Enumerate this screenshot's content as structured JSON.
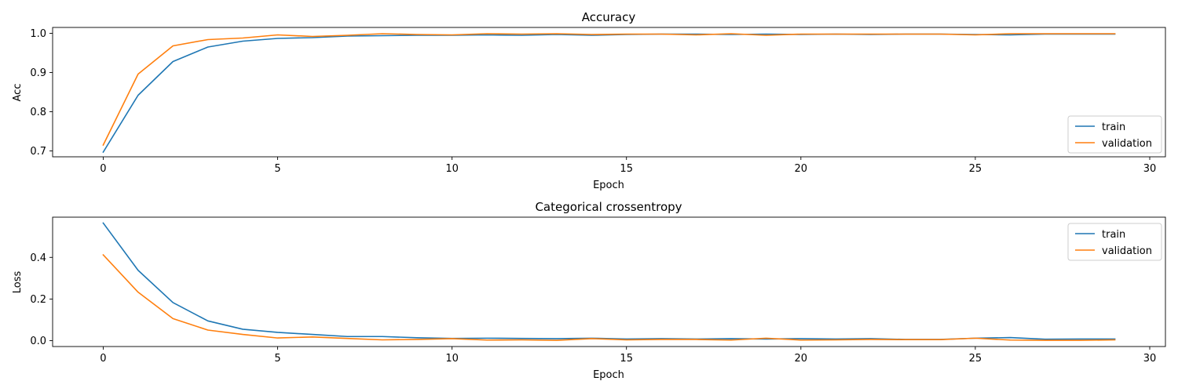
{
  "chart_data": [
    {
      "type": "line",
      "title": "Accuracy",
      "xlabel": "Epoch",
      "ylabel": "Acc",
      "xlim": [
        -1.45,
        30.45
      ],
      "ylim": [
        0.685,
        1.015
      ],
      "xticks": [
        0,
        5,
        10,
        15,
        20,
        25,
        30
      ],
      "xtick_labels": [
        "0",
        "5",
        "10",
        "15",
        "20",
        "25",
        "30"
      ],
      "yticks": [
        0.7,
        0.8,
        0.9,
        1.0
      ],
      "ytick_labels": [
        "0.7",
        "0.8",
        "0.9",
        "1.0"
      ],
      "grid": false,
      "legend_position": "lower-right",
      "x": [
        0,
        1,
        2,
        3,
        4,
        5,
        6,
        7,
        8,
        9,
        10,
        11,
        12,
        13,
        14,
        15,
        16,
        17,
        18,
        19,
        20,
        21,
        22,
        23,
        24,
        25,
        26,
        27,
        28,
        29
      ],
      "series": [
        {
          "name": "train",
          "color": "#1f77b4",
          "values": [
            0.697,
            0.842,
            0.928,
            0.965,
            0.98,
            0.987,
            0.989,
            0.993,
            0.994,
            0.995,
            0.995,
            0.996,
            0.995,
            0.997,
            0.995,
            0.997,
            0.998,
            0.998,
            0.997,
            0.998,
            0.997,
            0.998,
            0.997,
            0.998,
            0.998,
            0.997,
            0.996,
            0.998,
            0.998,
            0.998
          ]
        },
        {
          "name": "validation",
          "color": "#ff7f0e",
          "values": [
            0.715,
            0.896,
            0.968,
            0.984,
            0.988,
            0.996,
            0.992,
            0.995,
            0.999,
            0.997,
            0.996,
            0.999,
            0.998,
            0.999,
            0.997,
            0.998,
            0.998,
            0.996,
            0.999,
            0.995,
            0.998,
            0.998,
            0.998,
            0.998,
            0.998,
            0.996,
            0.999,
            0.999,
            0.999,
            0.999
          ]
        }
      ]
    },
    {
      "type": "line",
      "title": "Categorical crossentropy",
      "xlabel": "Epoch",
      "ylabel": "Loss",
      "xlim": [
        -1.45,
        30.45
      ],
      "ylim": [
        -0.028,
        0.593
      ],
      "xticks": [
        0,
        5,
        10,
        15,
        20,
        25,
        30
      ],
      "xtick_labels": [
        "0",
        "5",
        "10",
        "15",
        "20",
        "25",
        "30"
      ],
      "yticks": [
        0.0,
        0.2,
        0.4
      ],
      "ytick_labels": [
        "0.0",
        "0.2",
        "0.4"
      ],
      "grid": false,
      "legend_position": "upper-right",
      "x": [
        0,
        1,
        2,
        3,
        4,
        5,
        6,
        7,
        8,
        9,
        10,
        11,
        12,
        13,
        14,
        15,
        16,
        17,
        18,
        19,
        20,
        21,
        22,
        23,
        24,
        25,
        26,
        27,
        28,
        29
      ],
      "series": [
        {
          "name": "train",
          "color": "#1f77b4",
          "values": [
            0.565,
            0.338,
            0.183,
            0.095,
            0.055,
            0.04,
            0.03,
            0.02,
            0.02,
            0.014,
            0.011,
            0.012,
            0.011,
            0.01,
            0.012,
            0.008,
            0.01,
            0.008,
            0.01,
            0.008,
            0.01,
            0.008,
            0.01,
            0.006,
            0.006,
            0.012,
            0.015,
            0.007,
            0.008,
            0.008
          ]
        },
        {
          "name": "validation",
          "color": "#ff7f0e",
          "values": [
            0.412,
            0.233,
            0.106,
            0.051,
            0.03,
            0.013,
            0.018,
            0.011,
            0.004,
            0.006,
            0.01,
            0.003,
            0.004,
            0.002,
            0.01,
            0.004,
            0.006,
            0.006,
            0.003,
            0.012,
            0.003,
            0.004,
            0.006,
            0.005,
            0.005,
            0.012,
            0.003,
            0.002,
            0.002,
            0.004
          ]
        }
      ]
    }
  ]
}
